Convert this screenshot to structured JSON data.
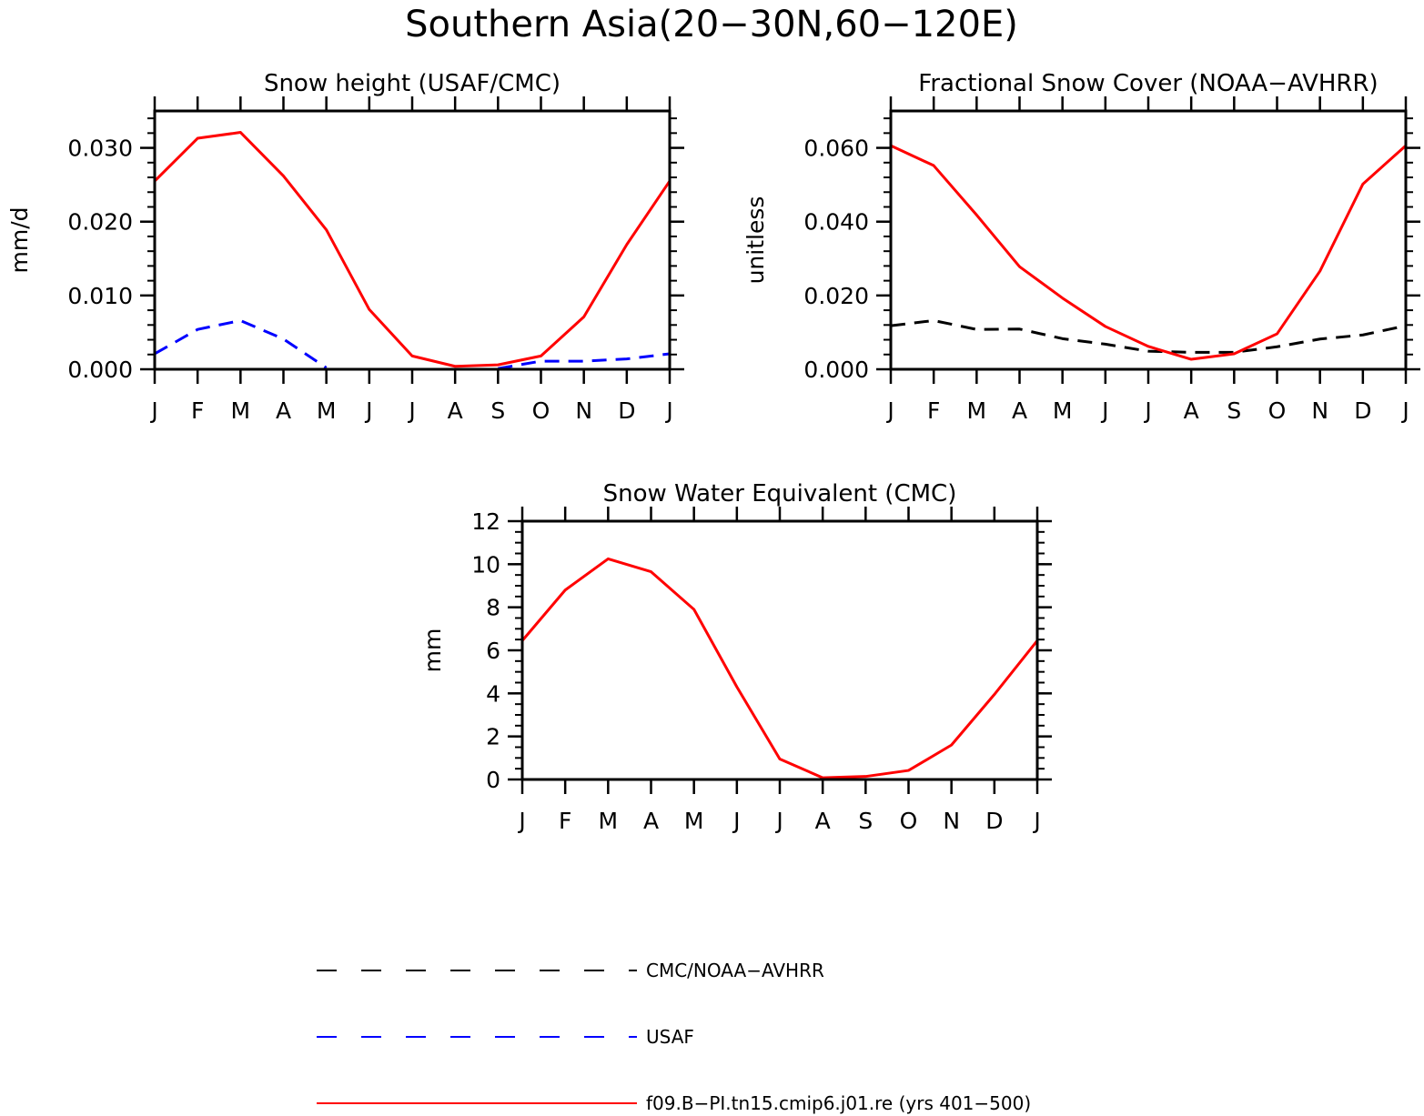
{
  "title": "Southern Asia(20−30N,60−120E)",
  "months": [
    "J",
    "F",
    "M",
    "A",
    "M",
    "J",
    "J",
    "A",
    "S",
    "O",
    "N",
    "D",
    "J"
  ],
  "chart_data": [
    {
      "type": "line",
      "title": "Snow height (USAF/CMC)",
      "xlabel": "",
      "ylabel": "mm/d",
      "x": [
        "J",
        "F",
        "M",
        "A",
        "M",
        "J",
        "J",
        "A",
        "S",
        "O",
        "N",
        "D",
        "J"
      ],
      "ylim": [
        0,
        0.035
      ],
      "yticks": [
        0,
        0.01,
        0.02,
        0.03
      ],
      "yticklabels": [
        "0.000",
        "0.010",
        "0.020",
        "0.030"
      ],
      "minor_step": 0.002,
      "series": [
        {
          "name": "CMC/NOAA-AVHRR",
          "color": "#000000",
          "dash": "dashed",
          "values": [
            0,
            0,
            0,
            0,
            0,
            0,
            0,
            0,
            0,
            0,
            0,
            0,
            0
          ]
        },
        {
          "name": "USAF",
          "color": "#0000ff",
          "dash": "dashed",
          "values": [
            0.0021,
            0.0054,
            0.0066,
            0.0041,
            0.0002,
            null,
            null,
            null,
            0.0001,
            0.0011,
            0.0011,
            0.0014,
            0.0021
          ]
        },
        {
          "name": "f09.B−PI.tn15.cmip6.j01.re (yrs 401−500)",
          "color": "#ff0000",
          "dash": "solid",
          "values": [
            0.0255,
            0.0313,
            0.0321,
            0.0262,
            0.0189,
            0.0081,
            0.0018,
            0.0004,
            0.0006,
            0.0018,
            0.0071,
            0.0169,
            0.0255
          ]
        }
      ]
    },
    {
      "type": "line",
      "title": "Fractional Snow Cover (NOAA−AVHRR)",
      "xlabel": "",
      "ylabel": "unitless",
      "x": [
        "J",
        "F",
        "M",
        "A",
        "M",
        "J",
        "J",
        "A",
        "S",
        "O",
        "N",
        "D",
        "J"
      ],
      "ylim": [
        0,
        0.07
      ],
      "yticks": [
        0,
        0.02,
        0.04,
        0.06
      ],
      "yticklabels": [
        "0.000",
        "0.020",
        "0.040",
        "0.060"
      ],
      "minor_step": 0.004,
      "series": [
        {
          "name": "CMC/NOAA-AVHRR",
          "color": "#000000",
          "dash": "dashed",
          "values": [
            0.0118,
            0.0132,
            0.0108,
            0.0109,
            0.0083,
            0.0068,
            0.0049,
            0.0046,
            0.0046,
            0.0061,
            0.0082,
            0.0093,
            0.0118
          ]
        },
        {
          "name": "f09.B−PI.tn15.cmip6.j01.re (yrs 401−500)",
          "color": "#ff0000",
          "dash": "solid",
          "values": [
            0.0606,
            0.0552,
            0.0418,
            0.0278,
            0.0193,
            0.0116,
            0.0062,
            0.0027,
            0.0042,
            0.0096,
            0.0266,
            0.0502,
            0.0606
          ]
        }
      ]
    },
    {
      "type": "line",
      "title": "Snow Water Equivalent (CMC)",
      "xlabel": "",
      "ylabel": "mm",
      "x": [
        "J",
        "F",
        "M",
        "A",
        "M",
        "J",
        "J",
        "A",
        "S",
        "O",
        "N",
        "D",
        "J"
      ],
      "ylim": [
        0,
        12
      ],
      "yticks": [
        0,
        2,
        4,
        6,
        8,
        10,
        12
      ],
      "yticklabels": [
        "0",
        "2",
        "4",
        "6",
        "8",
        "10",
        "12"
      ],
      "minor_step": 0.5,
      "series": [
        {
          "name": "CMC/NOAA-AVHRR",
          "color": "#000000",
          "dash": "dashed",
          "values": [
            0,
            0,
            0,
            0,
            0,
            0,
            0,
            0,
            0,
            0,
            0,
            0,
            0
          ]
        },
        {
          "name": "f09.B−PI.tn15.cmip6.j01.re (yrs 401−500)",
          "color": "#ff0000",
          "dash": "solid",
          "values": [
            6.45,
            8.8,
            10.25,
            9.65,
            7.9,
            4.3,
            0.95,
            0.08,
            0.14,
            0.42,
            1.6,
            3.95,
            6.45
          ]
        }
      ]
    }
  ],
  "legend": [
    {
      "label": "CMC/NOAA−AVHRR",
      "color": "#000000",
      "dash": "dashed"
    },
    {
      "label": "USAF",
      "color": "#0000ff",
      "dash": "dashed"
    },
    {
      "label": "f09.B−PI.tn15.cmip6.j01.re (yrs 401−500)",
      "color": "#ff0000",
      "dash": "solid"
    }
  ]
}
